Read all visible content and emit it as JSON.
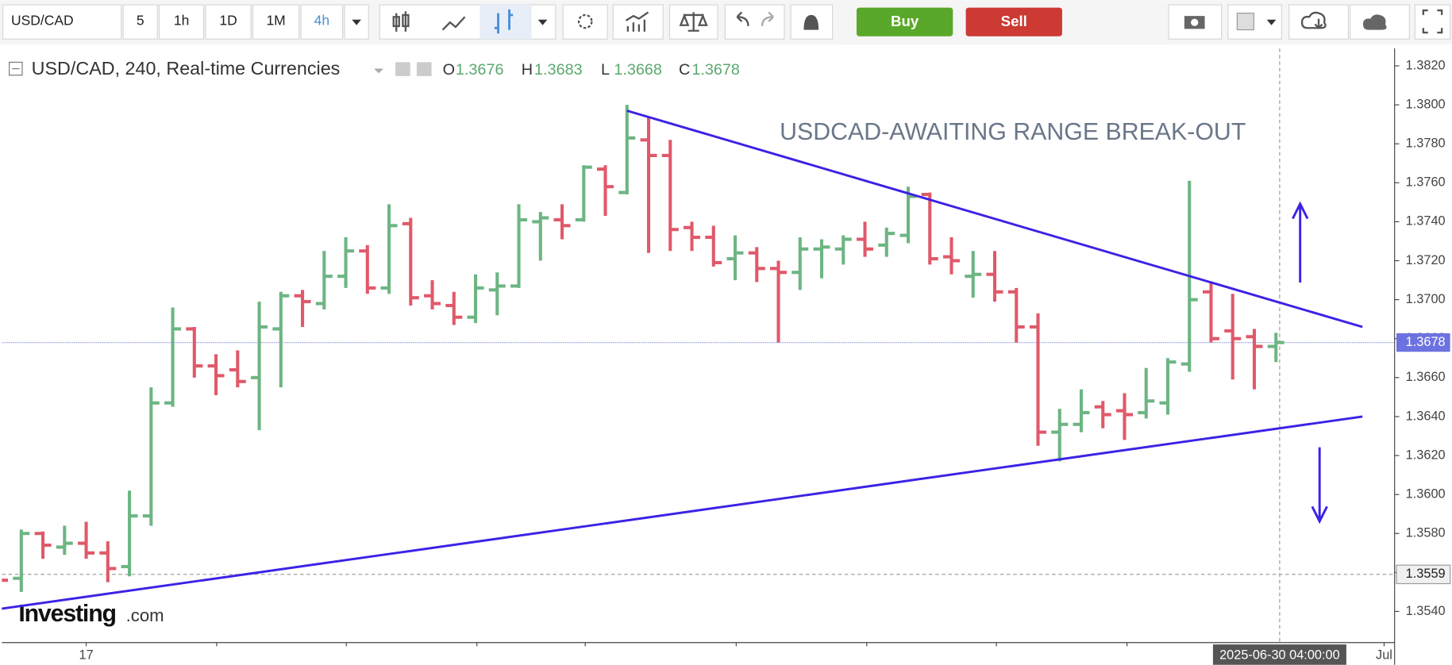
{
  "toolbar": {
    "symbol": "USD/CAD",
    "intervals": [
      "5",
      "1h",
      "1D",
      "1M",
      "4h"
    ],
    "buy": "Buy",
    "sell": "Sell"
  },
  "chart_data": {
    "type": "ohlc",
    "header": {
      "title": "USD/CAD, 240, Real-time Currencies",
      "ohlc": [
        {
          "key": "O",
          "value": "1.3676"
        },
        {
          "key": "H",
          "value": "1.3683"
        },
        {
          "key": "L",
          "value": "1.3668"
        },
        {
          "key": "C",
          "value": "1.3678"
        }
      ]
    },
    "annotation": "USDCAD-AWAITING RANGE BREAK-OUT",
    "watermark": [
      "Investing",
      ".com"
    ],
    "up_color": "#6db583",
    "down_color": "#e0596a",
    "open": [
      1.356,
      1.3557,
      1.358,
      1.3573,
      1.3575,
      1.357,
      1.3563,
      1.3589,
      1.3647,
      1.3685,
      1.3666,
      1.3664,
      1.366,
      1.3685,
      1.3702,
      1.3698,
      1.3712,
      1.3725,
      1.3706,
      1.3739,
      1.3702,
      1.3697,
      1.3691,
      1.3705,
      1.3707,
      1.374,
      1.3741,
      1.3741,
      1.3767,
      1.3755,
      1.3782,
      1.3774,
      1.3737,
      1.3732,
      1.3721,
      1.3724,
      1.3716,
      1.3714,
      1.3726,
      1.3726,
      1.3731,
      1.3728,
      1.3733,
      1.3754,
      1.3722,
      1.3712,
      1.3713,
      1.3704,
      1.3686,
      1.3632,
      1.3636,
      1.3645,
      1.3643,
      1.3642,
      1.3647,
      1.3667,
      1.3704,
      1.3684,
      1.3681,
      1.3676
    ],
    "high": [
      1.3561,
      1.3582,
      1.3581,
      1.3584,
      1.3586,
      1.3576,
      1.3602,
      1.3655,
      1.3696,
      1.3686,
      1.3672,
      1.3674,
      1.3699,
      1.3704,
      1.3705,
      1.3725,
      1.3732,
      1.3728,
      1.3749,
      1.3742,
      1.371,
      1.3704,
      1.3713,
      1.3714,
      1.3749,
      1.3745,
      1.3749,
      1.3769,
      1.3769,
      1.38,
      1.3794,
      1.3782,
      1.374,
      1.3738,
      1.3733,
      1.3727,
      1.372,
      1.3732,
      1.3731,
      1.3733,
      1.374,
      1.3737,
      1.3758,
      1.3755,
      1.3732,
      1.3725,
      1.3725,
      1.3706,
      1.3693,
      1.3644,
      1.3654,
      1.3648,
      1.3652,
      1.3665,
      1.367,
      1.3761,
      1.3709,
      1.3703,
      1.3685,
      1.3683
    ],
    "low": [
      1.3555,
      1.355,
      1.3567,
      1.3569,
      1.3567,
      1.3555,
      1.3558,
      1.3584,
      1.3645,
      1.366,
      1.3651,
      1.3655,
      1.3633,
      1.3655,
      1.3686,
      1.3695,
      1.3706,
      1.3703,
      1.3703,
      1.3697,
      1.3695,
      1.3687,
      1.3688,
      1.3692,
      1.3706,
      1.372,
      1.3731,
      1.374,
      1.3743,
      1.3754,
      1.3724,
      1.3725,
      1.3725,
      1.3717,
      1.371,
      1.3709,
      1.3678,
      1.3705,
      1.3711,
      1.3718,
      1.3722,
      1.3722,
      1.3729,
      1.3718,
      1.3713,
      1.3701,
      1.3699,
      1.3678,
      1.3625,
      1.3617,
      1.3632,
      1.3634,
      1.3628,
      1.3639,
      1.3641,
      1.3663,
      1.3678,
      1.3659,
      1.3654,
      1.3668
    ],
    "close": [
      1.3556,
      1.358,
      1.3574,
      1.3575,
      1.357,
      1.3562,
      1.3589,
      1.3647,
      1.3685,
      1.3666,
      1.3661,
      1.3658,
      1.3686,
      1.3702,
      1.3699,
      1.3712,
      1.3725,
      1.3706,
      1.3738,
      1.3701,
      1.3698,
      1.3691,
      1.3706,
      1.3707,
      1.3741,
      1.3742,
      1.3738,
      1.3768,
      1.3758,
      1.3783,
      1.3774,
      1.3736,
      1.3732,
      1.3719,
      1.3724,
      1.3716,
      1.3714,
      1.3726,
      1.3727,
      1.3731,
      1.3726,
      1.3734,
      1.3753,
      1.3721,
      1.372,
      1.3713,
      1.3704,
      1.3686,
      1.3632,
      1.3636,
      1.3642,
      1.3641,
      1.3641,
      1.3648,
      1.3668,
      1.37,
      1.368,
      1.368,
      1.3676,
      1.3678
    ],
    "ylim": [
      1.3524,
      1.3829
    ],
    "yticks": [
      {
        "value": 1.354,
        "label": "1.3540"
      },
      {
        "value": 1.356,
        "label": "1.3560"
      },
      {
        "value": 1.358,
        "label": "1.3580"
      },
      {
        "value": 1.36,
        "label": "1.3600"
      },
      {
        "value": 1.362,
        "label": "1.3620"
      },
      {
        "value": 1.364,
        "label": "1.3640"
      },
      {
        "value": 1.366,
        "label": "1.3660"
      },
      {
        "value": 1.368,
        "label": "1.3680"
      },
      {
        "value": 1.37,
        "label": "1.3700"
      },
      {
        "value": 1.372,
        "label": "1.3720"
      },
      {
        "value": 1.374,
        "label": "1.3740"
      },
      {
        "value": 1.376,
        "label": "1.3760"
      },
      {
        "value": 1.378,
        "label": "1.3780"
      },
      {
        "value": 1.38,
        "label": "1.3800"
      },
      {
        "value": 1.382,
        "label": "1.3820"
      }
    ],
    "xticks": [
      {
        "value": 4,
        "label": "17"
      },
      {
        "value": 64,
        "label": "Jul"
      }
    ],
    "last_price": 1.3678,
    "crosshair": {
      "price": 1.3559,
      "time": "2025-06-30 04:00:00"
    },
    "trendlines": [
      {
        "x": [
          29,
          63
        ],
        "y": [
          1.3797,
          1.3686
        ],
        "color": "#3b22e6"
      },
      {
        "x": [
          -0.8,
          63
        ],
        "y": [
          1.354,
          1.364
        ],
        "color": "#3b22e6"
      }
    ]
  }
}
